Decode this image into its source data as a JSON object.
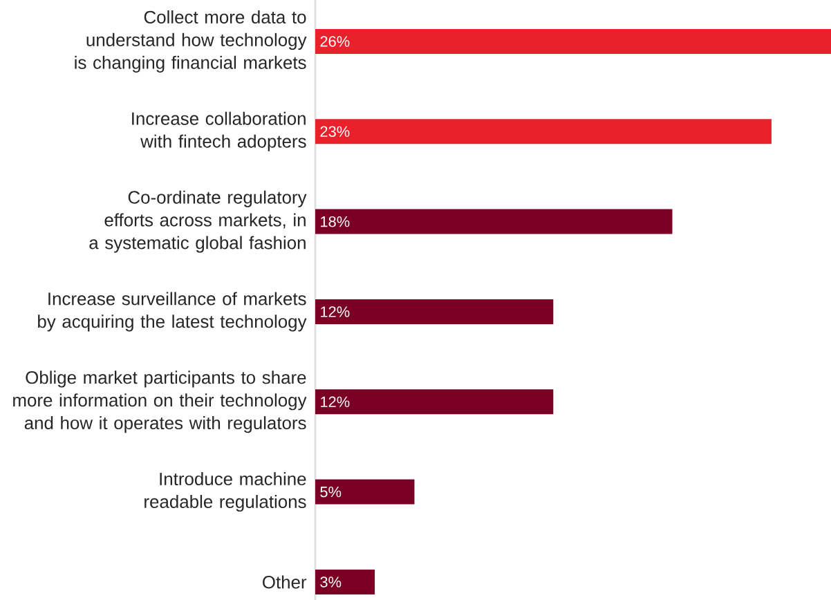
{
  "chart_data": {
    "type": "bar",
    "orientation": "horizontal",
    "categories": [
      "Collect more data to understand how technology is changing financial markets",
      "Increase collaboration with fintech adopters",
      "Co-ordinate regulatory efforts across markets, in a systematic global fashion",
      "Increase surveillance of markets by acquiring the latest technology",
      "Oblige market participants to share more information on their technology and how it operates with regulators",
      "Introduce machine readable regulations",
      "Other"
    ],
    "values": [
      26,
      23,
      18,
      12,
      12,
      5,
      3
    ],
    "value_labels": [
      "26%",
      "23%",
      "18%",
      "12%",
      "12%",
      "5%",
      "3%"
    ],
    "colors": [
      "#e8212b",
      "#e8212b",
      "#7a0026",
      "#7a0026",
      "#7a0026",
      "#7a0026",
      "#7a0026"
    ]
  }
}
